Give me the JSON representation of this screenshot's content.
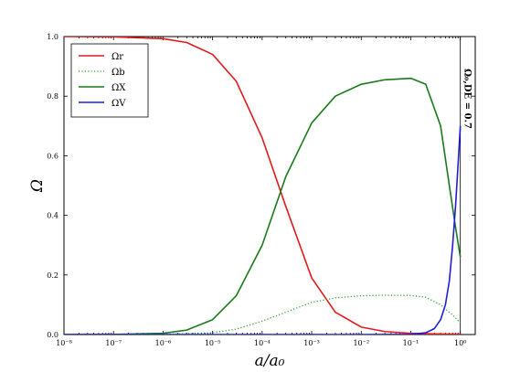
{
  "chart_data": {
    "type": "line",
    "xlabel": "a/a₀",
    "ylabel": "Ω",
    "xscale": "log",
    "xlim": [
      1e-08,
      2
    ],
    "ylim": [
      0,
      1
    ],
    "grid": false,
    "legend_position": "top-left",
    "x_tick_labels": [
      "10⁻⁸",
      "10⁻⁷",
      "10⁻⁶",
      "10⁻⁵",
      "10⁻⁴",
      "10⁻³",
      "10⁻²",
      "10⁻¹",
      "10⁰"
    ],
    "x_tick_values": [
      1e-08,
      1e-07,
      1e-06,
      1e-05,
      0.0001,
      0.001,
      0.01,
      0.1,
      1
    ],
    "y_tick_labels": [
      "0.0",
      "0.2",
      "0.4",
      "0.6",
      "0.8",
      "1.0"
    ],
    "y_tick_values": [
      0,
      0.2,
      0.4,
      0.6,
      0.8,
      1.0
    ],
    "annotation": {
      "text": "Ω₀,DE = 0.7",
      "x": 1
    },
    "series": [
      {
        "name": "Ωr",
        "color": "#e31a1c",
        "style": "solid",
        "x": [
          1e-08,
          1e-07,
          1e-06,
          3e-06,
          1e-05,
          3e-05,
          0.0001,
          0.0003,
          0.001,
          0.003,
          0.01,
          0.03,
          0.1,
          0.3,
          1
        ],
        "y": [
          1.0,
          0.999,
          0.993,
          0.98,
          0.94,
          0.85,
          0.66,
          0.43,
          0.19,
          0.075,
          0.025,
          0.01,
          0.004,
          0.002,
          0.001
        ]
      },
      {
        "name": "Ωb",
        "color": "#2ca02c",
        "style": "dotted",
        "x": [
          1e-08,
          1e-06,
          1e-05,
          3e-05,
          0.0001,
          0.0003,
          0.001,
          0.003,
          0.01,
          0.03,
          0.1,
          0.2,
          0.4,
          0.7,
          1
        ],
        "y": [
          0.0,
          0.0005,
          0.006,
          0.018,
          0.045,
          0.075,
          0.108,
          0.123,
          0.13,
          0.132,
          0.131,
          0.125,
          0.1,
          0.065,
          0.04
        ]
      },
      {
        "name": "ΩX",
        "color": "#1a7a1a",
        "style": "solid",
        "x": [
          1e-08,
          1e-07,
          1e-06,
          3e-06,
          1e-05,
          3e-05,
          0.0001,
          0.0003,
          0.001,
          0.003,
          0.01,
          0.03,
          0.1,
          0.2,
          0.4,
          0.6,
          0.8,
          1
        ],
        "y": [
          0.0,
          0.0005,
          0.004,
          0.015,
          0.05,
          0.13,
          0.3,
          0.53,
          0.71,
          0.8,
          0.84,
          0.855,
          0.86,
          0.84,
          0.7,
          0.5,
          0.36,
          0.26
        ]
      },
      {
        "name": "ΩV",
        "color": "#1f1fd6",
        "style": "solid",
        "x": [
          1e-08,
          0.01,
          0.1,
          0.2,
          0.3,
          0.4,
          0.5,
          0.6,
          0.7,
          0.8,
          0.9,
          1
        ],
        "y": [
          0.0,
          0.0,
          0.0008,
          0.006,
          0.02,
          0.05,
          0.1,
          0.18,
          0.3,
          0.43,
          0.57,
          0.7
        ]
      }
    ]
  }
}
